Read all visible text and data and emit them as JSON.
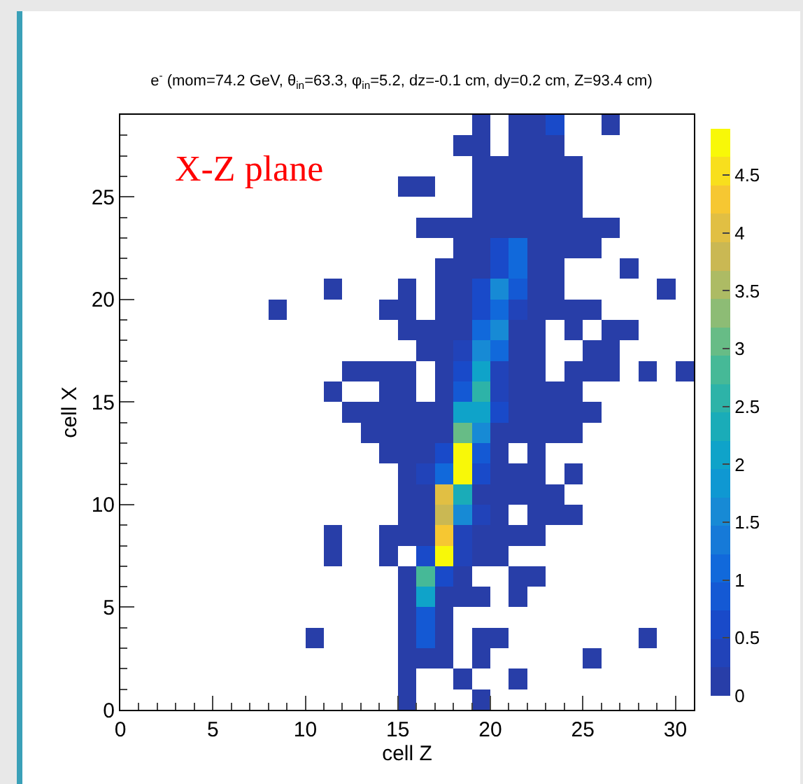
{
  "chart_data": {
    "type": "heatmap",
    "title": "e$^{-}$ (mom=74.2 GeV, θ$_{in}$=63.3, φ$_{in}$=5.2, dz=-0.1 cm, dy=0.2 cm, Z=93.4 cm)",
    "xlabel": "cell Z",
    "ylabel": "cell X",
    "annotations": [
      "X-Z plane"
    ],
    "xlim": [
      0,
      31
    ],
    "ylim": [
      0,
      29
    ],
    "xticks": [
      0,
      5,
      10,
      15,
      20,
      25,
      30
    ],
    "yticks": [
      0,
      5,
      10,
      15,
      20,
      25
    ],
    "clim": [
      0,
      4.9
    ],
    "cticks": [
      0,
      0.5,
      1,
      1.5,
      2,
      2.5,
      3,
      3.5,
      4,
      4.5
    ],
    "cells": [
      [
        null,
        null,
        null,
        null,
        null,
        null,
        null,
        null,
        null,
        null,
        null,
        null,
        null,
        null,
        null,
        null,
        null,
        null,
        null,
        0.1,
        null,
        0.1,
        0.1,
        0.6,
        null,
        null,
        0.1,
        null,
        null,
        null,
        null
      ],
      [
        null,
        null,
        null,
        null,
        null,
        null,
        null,
        null,
        null,
        null,
        null,
        null,
        null,
        null,
        null,
        null,
        null,
        null,
        0.1,
        0.1,
        null,
        0.1,
        0.1,
        0.1,
        null,
        null,
        null,
        null,
        null,
        null,
        null
      ],
      [
        null,
        null,
        null,
        null,
        null,
        null,
        null,
        null,
        null,
        null,
        null,
        null,
        null,
        null,
        null,
        null,
        null,
        null,
        null,
        0.1,
        0.1,
        0.1,
        0.1,
        0.1,
        0.1,
        null,
        null,
        null,
        null,
        null,
        null
      ],
      [
        null,
        null,
        null,
        null,
        null,
        null,
        null,
        null,
        null,
        null,
        null,
        null,
        null,
        null,
        null,
        0.1,
        0.1,
        null,
        null,
        0.1,
        0.1,
        0.1,
        0.1,
        0.1,
        0.1,
        null,
        null,
        null,
        null,
        null,
        null
      ],
      [
        null,
        null,
        null,
        null,
        null,
        null,
        null,
        null,
        null,
        null,
        null,
        null,
        null,
        null,
        null,
        null,
        null,
        null,
        null,
        0.1,
        0.1,
        0.1,
        0.1,
        0.1,
        0.1,
        null,
        null,
        null,
        null,
        null,
        null
      ],
      [
        null,
        null,
        null,
        null,
        null,
        null,
        null,
        null,
        null,
        null,
        null,
        null,
        null,
        null,
        null,
        null,
        0.1,
        0.1,
        0.1,
        0.1,
        0.1,
        0.1,
        0.1,
        0.1,
        0.1,
        0.1,
        0.1,
        null,
        null,
        null,
        null
      ],
      [
        null,
        null,
        null,
        null,
        null,
        null,
        null,
        null,
        null,
        null,
        null,
        null,
        null,
        null,
        null,
        null,
        null,
        null,
        0.1,
        0.1,
        0.6,
        1.0,
        0.1,
        0.1,
        0.1,
        0.1,
        null,
        null,
        null,
        null,
        null
      ],
      [
        null,
        null,
        null,
        null,
        null,
        null,
        null,
        null,
        null,
        null,
        null,
        null,
        null,
        null,
        null,
        null,
        null,
        0.1,
        0.1,
        0.1,
        0.6,
        1.1,
        0.1,
        0.1,
        null,
        null,
        null,
        0.1,
        null,
        null,
        null
      ],
      [
        null,
        null,
        null,
        null,
        null,
        null,
        null,
        null,
        null,
        null,
        null,
        0.1,
        null,
        null,
        null,
        0.1,
        null,
        0.1,
        0.1,
        0.6,
        1.7,
        0.9,
        0.1,
        0.1,
        null,
        null,
        null,
        null,
        null,
        0.1,
        null
      ],
      [
        null,
        null,
        null,
        null,
        null,
        null,
        null,
        null,
        0.1,
        null,
        null,
        null,
        null,
        null,
        0.1,
        0.1,
        null,
        0.1,
        0.1,
        0.6,
        1.0,
        0.4,
        0.1,
        0.1,
        0.1,
        0.1,
        null,
        null,
        null,
        null,
        null
      ],
      [
        null,
        null,
        null,
        null,
        null,
        null,
        null,
        null,
        null,
        null,
        null,
        null,
        null,
        null,
        null,
        0.1,
        0.1,
        0.1,
        0.1,
        1.0,
        1.6,
        0.1,
        0.1,
        null,
        0.1,
        null,
        0.1,
        0.1,
        null,
        null,
        null
      ],
      [
        null,
        null,
        null,
        null,
        null,
        null,
        null,
        null,
        null,
        null,
        null,
        null,
        null,
        null,
        null,
        null,
        0.1,
        0.1,
        0.4,
        1.7,
        1.2,
        0.1,
        0.1,
        null,
        null,
        0.1,
        0.1,
        null,
        null,
        null,
        null
      ],
      [
        null,
        null,
        null,
        null,
        null,
        null,
        null,
        null,
        null,
        null,
        null,
        null,
        0.1,
        0.1,
        0.1,
        0.1,
        null,
        0.1,
        0.6,
        2.0,
        0.4,
        0.1,
        0.1,
        null,
        0.1,
        0.1,
        0.1,
        null,
        0.1,
        null,
        0.1
      ],
      [
        null,
        null,
        null,
        null,
        null,
        null,
        null,
        null,
        null,
        null,
        null,
        0.1,
        null,
        null,
        0.1,
        0.1,
        null,
        0.1,
        0.9,
        2.6,
        0.4,
        0.1,
        0.1,
        0.1,
        0.1,
        null,
        null,
        null,
        null,
        null,
        null
      ],
      [
        null,
        null,
        null,
        null,
        null,
        null,
        null,
        null,
        null,
        null,
        null,
        null,
        0.1,
        0.1,
        0.1,
        0.1,
        0.1,
        0.1,
        2.0,
        2.0,
        0.6,
        0.1,
        0.1,
        0.1,
        0.1,
        0.1,
        null,
        null,
        null,
        null,
        null
      ],
      [
        null,
        null,
        null,
        null,
        null,
        null,
        null,
        null,
        null,
        null,
        null,
        null,
        null,
        0.1,
        0.1,
        0.1,
        0.1,
        0.1,
        3.1,
        1.6,
        0.1,
        0.1,
        0.1,
        0.1,
        0.1,
        null,
        null,
        null,
        null,
        null,
        null
      ],
      [
        null,
        null,
        null,
        null,
        null,
        null,
        null,
        null,
        null,
        null,
        null,
        null,
        null,
        null,
        0.1,
        0.1,
        0.1,
        0.6,
        4.8,
        0.8,
        0.1,
        null,
        0.1,
        null,
        null,
        null,
        null,
        null,
        null,
        null,
        null
      ],
      [
        null,
        null,
        null,
        null,
        null,
        null,
        null,
        null,
        null,
        null,
        null,
        null,
        null,
        null,
        null,
        0.1,
        0.4,
        1.0,
        4.8,
        0.6,
        0.1,
        0.1,
        0.1,
        null,
        0.1,
        null,
        null,
        null,
        null,
        null,
        null
      ],
      [
        null,
        null,
        null,
        null,
        null,
        null,
        null,
        null,
        null,
        null,
        null,
        null,
        null,
        null,
        null,
        0.1,
        0.1,
        4.0,
        2.3,
        0.1,
        0.1,
        0.1,
        0.1,
        0.1,
        null,
        null,
        null,
        null,
        null,
        null,
        null
      ],
      [
        null,
        null,
        null,
        null,
        null,
        null,
        null,
        null,
        null,
        null,
        null,
        null,
        null,
        null,
        null,
        0.1,
        0.1,
        3.7,
        1.7,
        0.4,
        0.1,
        null,
        0.1,
        0.1,
        0.1,
        null,
        null,
        null,
        null,
        null,
        null
      ],
      [
        null,
        null,
        null,
        null,
        null,
        null,
        null,
        null,
        null,
        null,
        null,
        0.1,
        null,
        null,
        0.1,
        0.1,
        0.1,
        4.4,
        0.4,
        0.1,
        0.1,
        0.1,
        0.1,
        null,
        null,
        null,
        null,
        null,
        null,
        null,
        null
      ],
      [
        null,
        null,
        null,
        null,
        null,
        null,
        null,
        null,
        null,
        null,
        null,
        0.1,
        null,
        null,
        0.1,
        null,
        0.6,
        4.7,
        0.4,
        0.1,
        0.1,
        null,
        null,
        null,
        null,
        null,
        null,
        null,
        null,
        null,
        null
      ],
      [
        null,
        null,
        null,
        null,
        null,
        null,
        null,
        null,
        null,
        null,
        null,
        null,
        null,
        null,
        null,
        0.1,
        2.8,
        0.6,
        0.1,
        null,
        null,
        0.1,
        0.1,
        null,
        null,
        null,
        null,
        null,
        null,
        null,
        null
      ],
      [
        null,
        null,
        null,
        null,
        null,
        null,
        null,
        null,
        null,
        null,
        null,
        null,
        null,
        null,
        null,
        0.1,
        2.2,
        0.1,
        0.1,
        0.1,
        null,
        0.1,
        null,
        null,
        null,
        null,
        null,
        null,
        null,
        null,
        null
      ],
      [
        null,
        null,
        null,
        null,
        null,
        null,
        null,
        null,
        null,
        null,
        null,
        null,
        null,
        null,
        null,
        0.1,
        0.9,
        0.1,
        null,
        null,
        null,
        null,
        null,
        null,
        null,
        null,
        null,
        null,
        null,
        null,
        null
      ],
      [
        null,
        null,
        null,
        null,
        null,
        null,
        null,
        null,
        null,
        null,
        0.1,
        null,
        null,
        null,
        null,
        0.1,
        0.9,
        0.1,
        null,
        0.1,
        0.1,
        null,
        null,
        null,
        null,
        null,
        null,
        null,
        0.1,
        null,
        null
      ],
      [
        null,
        null,
        null,
        null,
        null,
        null,
        null,
        null,
        null,
        null,
        null,
        null,
        null,
        null,
        null,
        0.1,
        0.1,
        0.1,
        null,
        0.1,
        null,
        null,
        null,
        null,
        null,
        0.1,
        null,
        null,
        null,
        null,
        null
      ],
      [
        null,
        null,
        null,
        null,
        null,
        null,
        null,
        null,
        null,
        null,
        null,
        null,
        null,
        null,
        null,
        0.1,
        null,
        null,
        0.1,
        null,
        null,
        0.1,
        null,
        null,
        null,
        null,
        null,
        null,
        null,
        null,
        null
      ],
      [
        null,
        null,
        null,
        null,
        null,
        null,
        null,
        null,
        null,
        null,
        null,
        null,
        null,
        null,
        null,
        0.1,
        null,
        null,
        null,
        0.1,
        null,
        null,
        null,
        null,
        null,
        null,
        null,
        null,
        null,
        null,
        null
      ]
    ]
  }
}
